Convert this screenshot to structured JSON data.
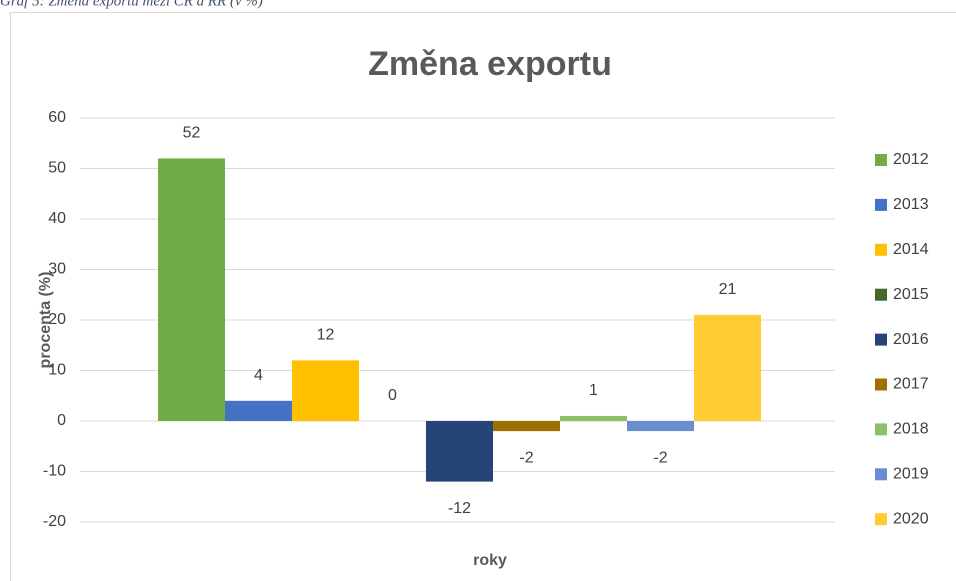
{
  "caption": "Graf 5: Změna exportu mezi ČR a RR (v %)",
  "chart_data": {
    "type": "bar",
    "title": "Změna exportu",
    "xlabel": "roky",
    "ylabel": "procenta (%)",
    "series": [
      {
        "name": "2012",
        "color": "#70ad47",
        "values": [
          52
        ]
      },
      {
        "name": "2013",
        "color": "#4472c4",
        "values": [
          4
        ]
      },
      {
        "name": "2014",
        "color": "#ffc000",
        "values": [
          12
        ]
      },
      {
        "name": "2015",
        "color": "#43682b",
        "values": [
          0
        ]
      },
      {
        "name": "2016",
        "color": "#264478",
        "values": [
          -12
        ]
      },
      {
        "name": "2017",
        "color": "#9e7000",
        "values": [
          -2
        ]
      },
      {
        "name": "2018",
        "color": "#8cc168",
        "values": [
          1
        ]
      },
      {
        "name": "2019",
        "color": "#698ed0",
        "values": [
          -2
        ]
      },
      {
        "name": "2020",
        "color": "#ffcd33",
        "values": [
          21
        ]
      }
    ],
    "ylim": [
      -20,
      60
    ],
    "yticks": [
      -20,
      -10,
      0,
      10,
      20,
      30,
      40,
      50,
      60
    ],
    "grid": true,
    "legend": "right",
    "data_labels": true
  }
}
